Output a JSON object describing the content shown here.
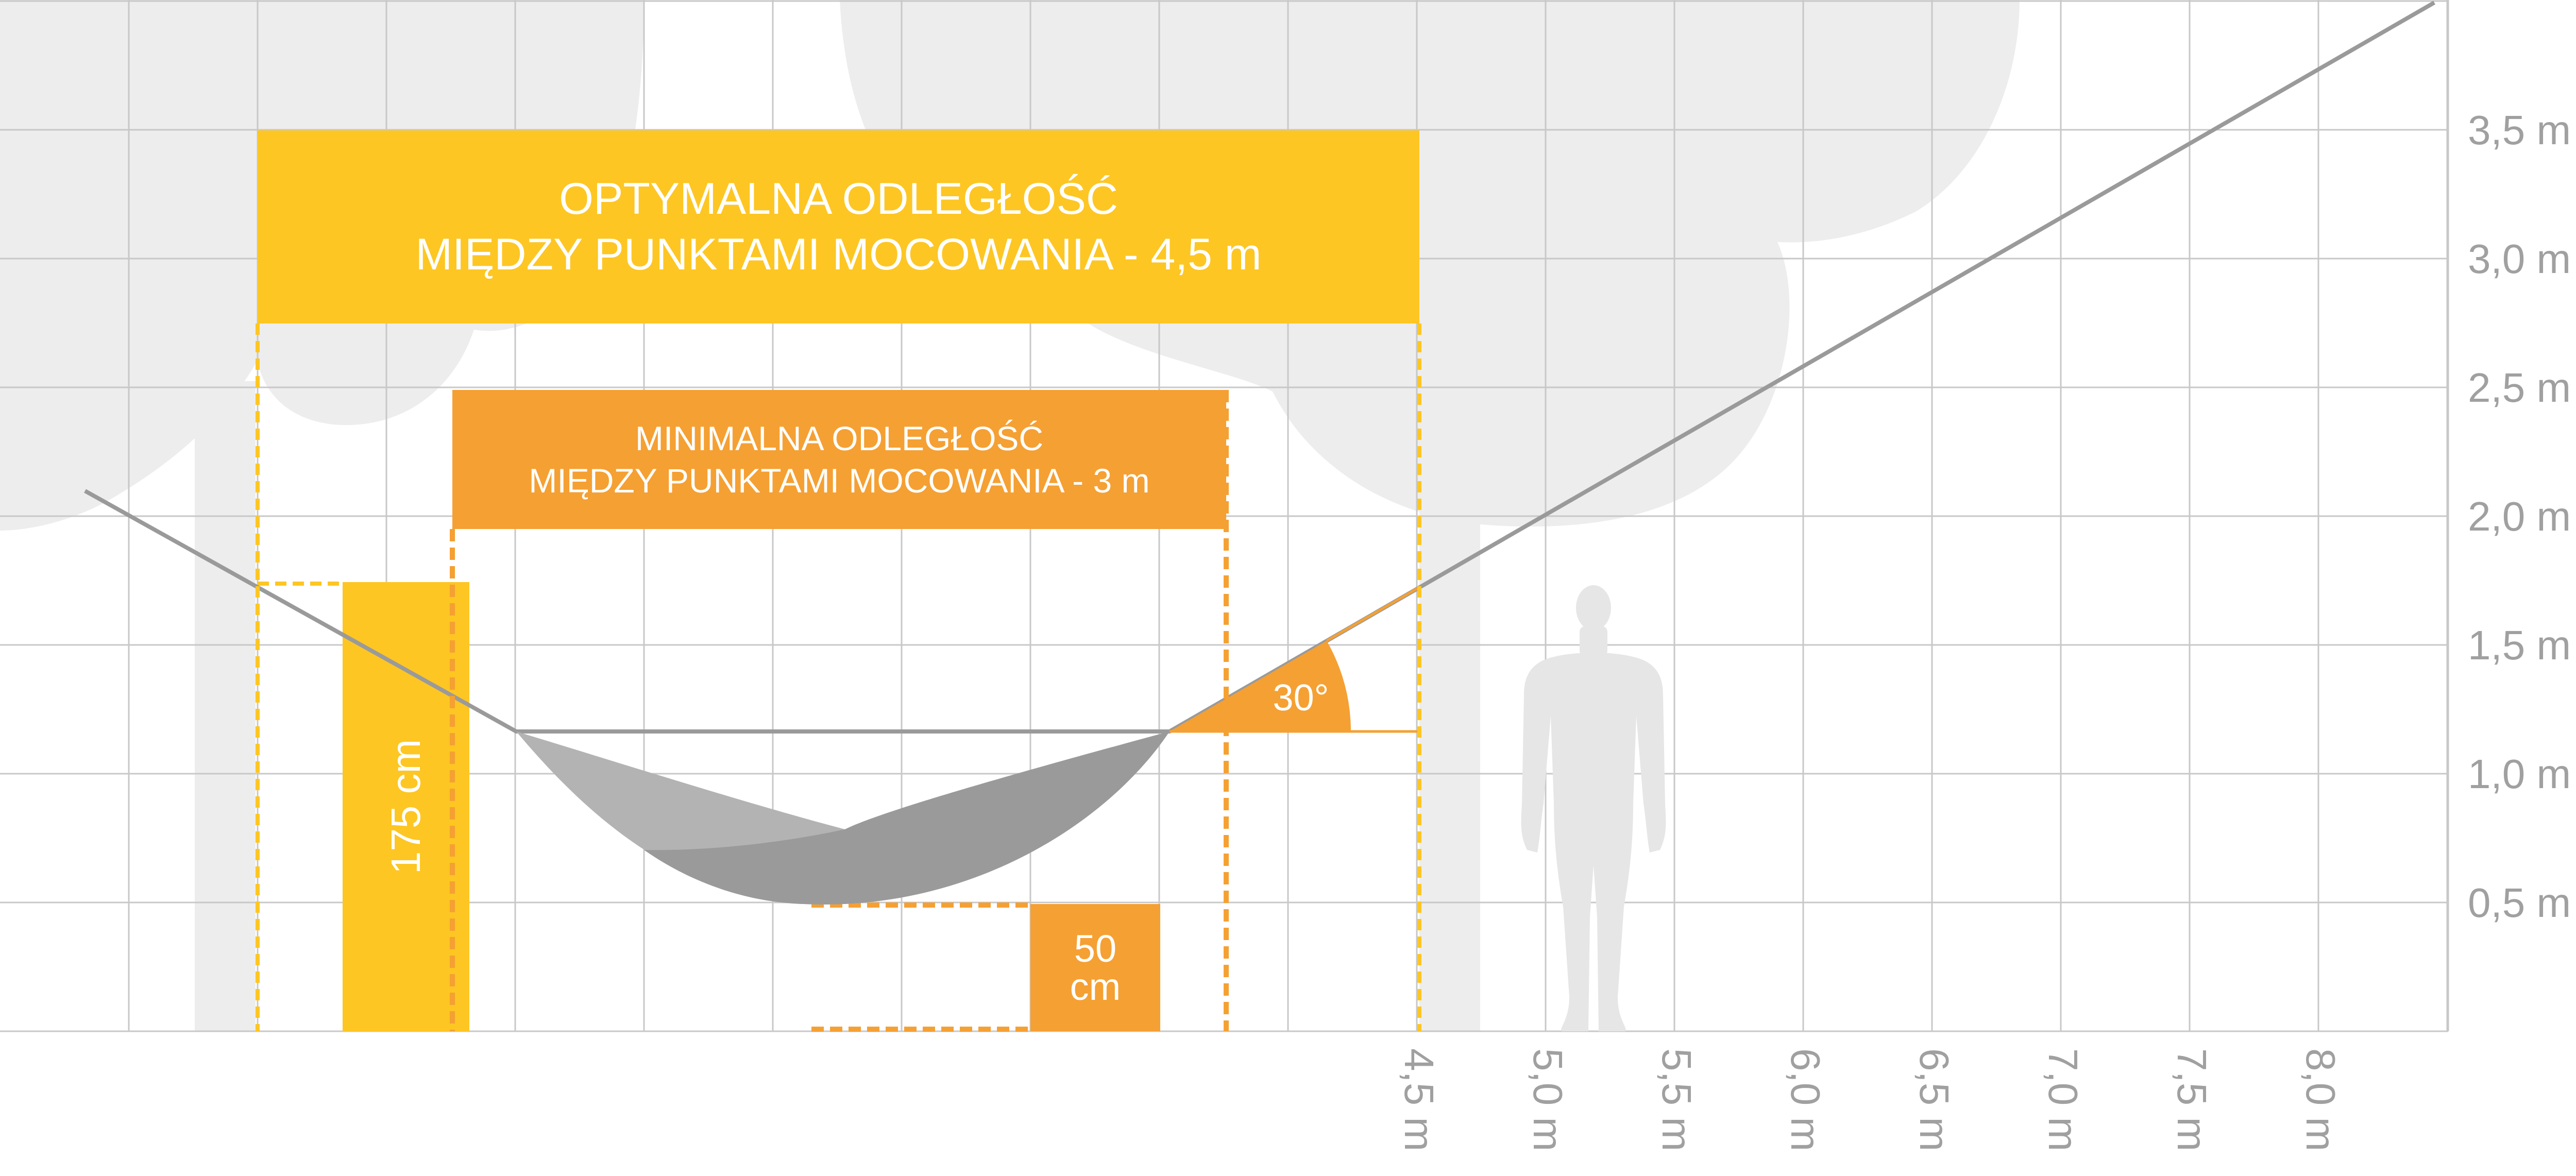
{
  "y_axis": {
    "tick_labels": [
      "0,5 m",
      "1,0 m",
      "1,5 m",
      "2,0 m",
      "2,5 m",
      "3,0 m",
      "3,5 m"
    ],
    "tick_values": [
      0.5,
      1.0,
      1.5,
      2.0,
      2.5,
      3.0,
      3.5
    ]
  },
  "x_axis": {
    "tick_labels": [
      "4,5 m",
      "5,0 m",
      "5,5 m",
      "6,0 m",
      "6,5 m",
      "7,0 m",
      "7,5 m",
      "8,0 m"
    ],
    "tick_values": [
      4.5,
      5.0,
      5.5,
      6.0,
      6.5,
      7.0,
      7.5,
      8.0
    ]
  },
  "optimal_box": {
    "line1": "OPTYMALNA ODLEGŁOŚĆ",
    "line2": "MIĘDZY PUNKTAMI MOCOWANIA - 4,5 m",
    "distance_m": 4.5
  },
  "minimal_box": {
    "line1": "MINIMALNA ODLEGŁOŚĆ",
    "line2": "MIĘDZY PUNKTAMI MOCOWANIA - 3 m",
    "distance_m": 3.0
  },
  "height_marker": {
    "label": "175 cm",
    "value_cm": 175
  },
  "sag_marker": {
    "line1": "50",
    "line2": "cm",
    "value_cm": 50
  },
  "angle_marker": {
    "label": "30°",
    "value_deg": 30
  },
  "colors": {
    "yellow": "#FDC623",
    "orange": "#F5A033",
    "grid": "#C8C8C8",
    "tree": "#EDEDED",
    "rope": "#9A9A9A",
    "hammock_light": "#B3B3B3",
    "hammock_dark": "#9A9A9A",
    "person": "#E6E6E6",
    "axis_text": "#A0A0A0"
  },
  "icons": [
    "tree-silhouette",
    "person-silhouette",
    "hammock-icon",
    "angle-wedge-icon"
  ]
}
